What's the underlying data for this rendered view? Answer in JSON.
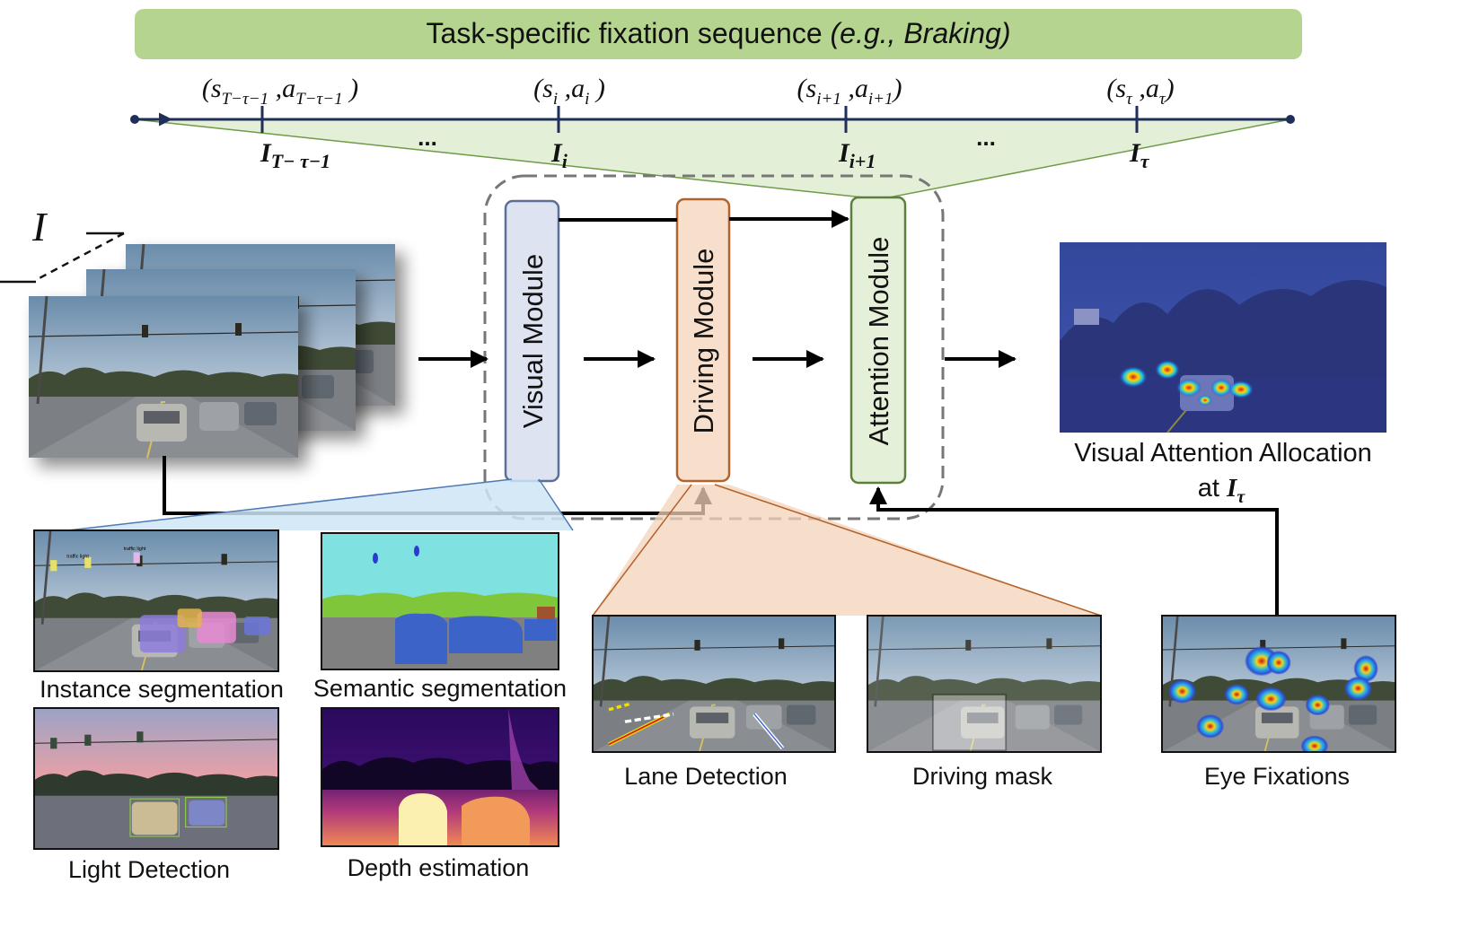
{
  "banner": {
    "text": "Task-specific fixation sequence ",
    "italic": "(e.g., Braking)",
    "color": "#b5d48f"
  },
  "timeline": {
    "ellipsis": "...",
    "points": [
      {
        "s": "s",
        "s_sub": "T−τ−1",
        "a": "a",
        "a_sub": "T−τ−1",
        "frame": "I",
        "frame_sub": "T− τ−1"
      },
      {
        "s": "s",
        "s_sub": "i",
        "a": "a",
        "a_sub": "i",
        "frame": "I",
        "frame_sub": "i"
      },
      {
        "s": "s",
        "s_sub": "i+1",
        "a": "a",
        "a_sub": "i+1",
        "frame": "I",
        "frame_sub": "i+1"
      },
      {
        "s": "s",
        "s_sub": "τ",
        "a": "a",
        "a_sub": "τ",
        "frame": "I",
        "frame_sub": "τ"
      }
    ]
  },
  "input": {
    "symbol": "I"
  },
  "modules": {
    "visual": {
      "label": "Visual Module",
      "fill": "#dde3f1",
      "stroke": "#5d6f95"
    },
    "driving": {
      "label": "Driving Module",
      "fill": "#f8dfcc",
      "stroke": "#b2622c"
    },
    "attention": {
      "label": "Attention Module",
      "fill": "#e5f0d8",
      "stroke": "#5c7f3c"
    }
  },
  "output": {
    "line1": "Visual Attention Allocation",
    "line2_prefix": "at ",
    "line2_symbol": "I",
    "line2_sub": "τ"
  },
  "visual_tasks": {
    "instance": "Instance segmentation",
    "semantic": "Semantic segmentation",
    "light": "Light Detection",
    "depth": "Depth estimation"
  },
  "driving_tasks": {
    "lane": "Lane Detection",
    "mask": "Driving mask"
  },
  "eye": {
    "label": "Eye Fixations"
  },
  "photo_tags": {
    "traffic_light": "traffic light"
  }
}
